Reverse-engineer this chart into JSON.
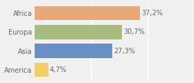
{
  "categories": [
    "America",
    "Asia",
    "Europa",
    "Africa"
  ],
  "values": [
    4.7,
    27.3,
    30.7,
    37.2
  ],
  "labels": [
    "4,7%",
    "27,3%",
    "30,7%",
    "37,2%"
  ],
  "bar_colors": [
    "#f0d060",
    "#6b8ec4",
    "#a8bc80",
    "#e8a878"
  ],
  "background_color": "#f0f0f0",
  "bar_height": 0.75,
  "xlim": [
    0,
    48
  ],
  "label_fontsize": 7,
  "tick_fontsize": 7,
  "label_color": "#666666",
  "tick_color": "#666666",
  "grid_color": "#ffffff",
  "grid_linewidth": 1.2
}
